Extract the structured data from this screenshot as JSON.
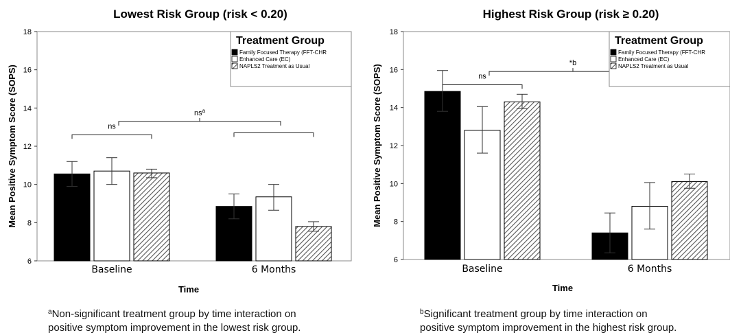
{
  "chart_data": [
    {
      "type": "bar",
      "title": "Lowest Risk Group (risk < 0.20)",
      "xlabel": "Time",
      "ylabel": "Mean Positive Symptom Score (SOPS)",
      "ylim": [
        6,
        18
      ],
      "yticks": [
        6,
        8,
        10,
        12,
        14,
        16,
        18
      ],
      "categories": [
        "Baseline",
        "6 Months"
      ],
      "legend": {
        "title": "Treatment Group",
        "placement": "top-right",
        "items": [
          "Family Focused Therapy (FFT-CHR",
          "Enhanced Care (EC)",
          "NAPLS2 Treatment as Usual"
        ]
      },
      "series": [
        {
          "name": "Family Focused Therapy (FFT-CHR",
          "fill": "solid",
          "color": "#000000",
          "values": [
            10.55,
            8.85
          ],
          "error_low": [
            9.9,
            8.2
          ],
          "error_high": [
            11.2,
            9.5
          ]
        },
        {
          "name": "Enhanced Care (EC)",
          "fill": "hollow",
          "color": "#ffffff",
          "values": [
            10.7,
            9.35
          ],
          "error_low": [
            10.0,
            8.65
          ],
          "error_high": [
            11.4,
            10.0
          ]
        },
        {
          "name": "NAPLS2 Treatment as Usual",
          "fill": "hatch",
          "color": "#888888",
          "values": [
            10.6,
            7.8
          ],
          "error_low": [
            10.35,
            7.55
          ],
          "error_high": [
            10.8,
            8.05
          ]
        }
      ],
      "annotations": [
        {
          "text": "ns",
          "type": "within",
          "category": 0,
          "y": 12.6
        },
        {
          "text": "",
          "type": "within",
          "category": 1,
          "y": 12.7
        },
        {
          "text": "ns",
          "sup": "a",
          "type": "across",
          "y": 13.3
        }
      ],
      "footnote": {
        "mark": "a",
        "line1": "Non-significant treatment group by time interaction on",
        "line2": "positive symptom improvement in the lowest risk group."
      }
    },
    {
      "type": "bar",
      "title": "Highest Risk Group (risk ≥ 0.20)",
      "xlabel": "Time",
      "ylabel": "Mean Positive Symptom Score (SOPS)",
      "ylim": [
        6,
        18
      ],
      "yticks": [
        6,
        8,
        10,
        12,
        14,
        16,
        18
      ],
      "categories": [
        "Baseline",
        "6 Months"
      ],
      "legend": {
        "title": "Treatment Group",
        "placement": "top-right",
        "items": [
          "Family Focused Therapy (FFT-CHR",
          "Enhanced Care (EC)",
          "NAPLS2 Treatment as Usual"
        ]
      },
      "series": [
        {
          "name": "Family Focused Therapy (FFT-CHR",
          "fill": "solid",
          "color": "#000000",
          "values": [
            14.85,
            7.4
          ],
          "error_low": [
            13.8,
            6.35
          ],
          "error_high": [
            15.95,
            8.45
          ]
        },
        {
          "name": "Enhanced Care (EC)",
          "fill": "hollow",
          "color": "#ffffff",
          "values": [
            12.8,
            8.8
          ],
          "error_low": [
            11.6,
            7.6
          ],
          "error_high": [
            14.05,
            10.05
          ]
        },
        {
          "name": "NAPLS2 Treatment as Usual",
          "fill": "hatch",
          "color": "#888888",
          "values": [
            14.3,
            10.1
          ],
          "error_low": [
            13.95,
            9.75
          ],
          "error_high": [
            14.7,
            10.5
          ]
        }
      ],
      "annotations": [
        {
          "text": "ns",
          "type": "within",
          "category": 0,
          "y": 15.2
        },
        {
          "text": "",
          "type": "within",
          "category": 1,
          "y": 15.4
        },
        {
          "text": "*b",
          "sup": "",
          "type": "across",
          "y": 15.9
        }
      ],
      "footnote": {
        "mark": "b",
        "line1": "Significant treatment group by time interaction on",
        "line2": "positive symptom improvement in the highest risk group."
      }
    }
  ]
}
